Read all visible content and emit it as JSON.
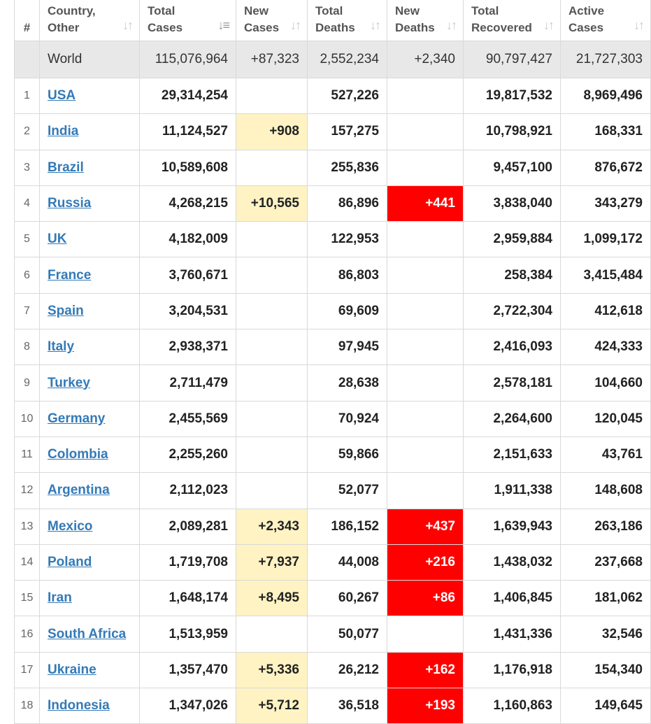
{
  "headers": {
    "num": "#",
    "country": [
      "Country,",
      "Other"
    ],
    "total_cases": [
      "Total",
      "Cases"
    ],
    "new_cases": [
      "New",
      "Cases"
    ],
    "total_deaths": [
      "Total",
      "Deaths"
    ],
    "new_deaths": [
      "New",
      "Deaths"
    ],
    "total_recovered": [
      "Total",
      "Recovered"
    ],
    "active_cases": [
      "Active",
      "Cases"
    ]
  },
  "world": {
    "label": "World",
    "total_cases": "115,076,964",
    "new_cases": "+87,323",
    "total_deaths": "2,552,234",
    "new_deaths": "+2,340",
    "total_recovered": "90,797,427",
    "active_cases": "21,727,303"
  },
  "rows": [
    {
      "num": "1",
      "country": "USA",
      "total_cases": "29,314,254",
      "new_cases": "",
      "total_deaths": "527,226",
      "new_deaths": "",
      "total_recovered": "19,817,532",
      "active_cases": "8,969,496"
    },
    {
      "num": "2",
      "country": "India",
      "total_cases": "11,124,527",
      "new_cases": "+908",
      "total_deaths": "157,275",
      "new_deaths": "",
      "total_recovered": "10,798,921",
      "active_cases": "168,331"
    },
    {
      "num": "3",
      "country": "Brazil",
      "total_cases": "10,589,608",
      "new_cases": "",
      "total_deaths": "255,836",
      "new_deaths": "",
      "total_recovered": "9,457,100",
      "active_cases": "876,672"
    },
    {
      "num": "4",
      "country": "Russia",
      "total_cases": "4,268,215",
      "new_cases": "+10,565",
      "total_deaths": "86,896",
      "new_deaths": "+441",
      "total_recovered": "3,838,040",
      "active_cases": "343,279"
    },
    {
      "num": "5",
      "country": "UK",
      "total_cases": "4,182,009",
      "new_cases": "",
      "total_deaths": "122,953",
      "new_deaths": "",
      "total_recovered": "2,959,884",
      "active_cases": "1,099,172"
    },
    {
      "num": "6",
      "country": "France",
      "total_cases": "3,760,671",
      "new_cases": "",
      "total_deaths": "86,803",
      "new_deaths": "",
      "total_recovered": "258,384",
      "active_cases": "3,415,484"
    },
    {
      "num": "7",
      "country": "Spain",
      "total_cases": "3,204,531",
      "new_cases": "",
      "total_deaths": "69,609",
      "new_deaths": "",
      "total_recovered": "2,722,304",
      "active_cases": "412,618"
    },
    {
      "num": "8",
      "country": "Italy",
      "total_cases": "2,938,371",
      "new_cases": "",
      "total_deaths": "97,945",
      "new_deaths": "",
      "total_recovered": "2,416,093",
      "active_cases": "424,333"
    },
    {
      "num": "9",
      "country": "Turkey",
      "total_cases": "2,711,479",
      "new_cases": "",
      "total_deaths": "28,638",
      "new_deaths": "",
      "total_recovered": "2,578,181",
      "active_cases": "104,660"
    },
    {
      "num": "10",
      "country": "Germany",
      "total_cases": "2,455,569",
      "new_cases": "",
      "total_deaths": "70,924",
      "new_deaths": "",
      "total_recovered": "2,264,600",
      "active_cases": "120,045"
    },
    {
      "num": "11",
      "country": "Colombia",
      "total_cases": "2,255,260",
      "new_cases": "",
      "total_deaths": "59,866",
      "new_deaths": "",
      "total_recovered": "2,151,633",
      "active_cases": "43,761"
    },
    {
      "num": "12",
      "country": "Argentina",
      "total_cases": "2,112,023",
      "new_cases": "",
      "total_deaths": "52,077",
      "new_deaths": "",
      "total_recovered": "1,911,338",
      "active_cases": "148,608"
    },
    {
      "num": "13",
      "country": "Mexico",
      "total_cases": "2,089,281",
      "new_cases": "+2,343",
      "total_deaths": "186,152",
      "new_deaths": "+437",
      "total_recovered": "1,639,943",
      "active_cases": "263,186"
    },
    {
      "num": "14",
      "country": "Poland",
      "total_cases": "1,719,708",
      "new_cases": "+7,937",
      "total_deaths": "44,008",
      "new_deaths": "+216",
      "total_recovered": "1,438,032",
      "active_cases": "237,668"
    },
    {
      "num": "15",
      "country": "Iran",
      "total_cases": "1,648,174",
      "new_cases": "+8,495",
      "total_deaths": "60,267",
      "new_deaths": "+86",
      "total_recovered": "1,406,845",
      "active_cases": "181,062"
    },
    {
      "num": "16",
      "country": "South Africa",
      "total_cases": "1,513,959",
      "new_cases": "",
      "total_deaths": "50,077",
      "new_deaths": "",
      "total_recovered": "1,431,336",
      "active_cases": "32,546"
    },
    {
      "num": "17",
      "country": "Ukraine",
      "total_cases": "1,357,470",
      "new_cases": "+5,336",
      "total_deaths": "26,212",
      "new_deaths": "+162",
      "total_recovered": "1,176,918",
      "active_cases": "154,340"
    },
    {
      "num": "18",
      "country": "Indonesia",
      "total_cases": "1,347,026",
      "new_cases": "+5,712",
      "total_deaths": "36,518",
      "new_deaths": "+193",
      "total_recovered": "1,160,863",
      "active_cases": "149,645"
    }
  ],
  "colors": {
    "link": "#337ab7",
    "new_cases_highlight": "#fff3c4",
    "new_deaths_highlight": "#ff0000",
    "world_row_bg": "#e8e8e8",
    "border": "#d9d9d9"
  },
  "icons": {
    "sort": "sort-arrows-icon",
    "sort_active": "sort-desc-icon"
  }
}
